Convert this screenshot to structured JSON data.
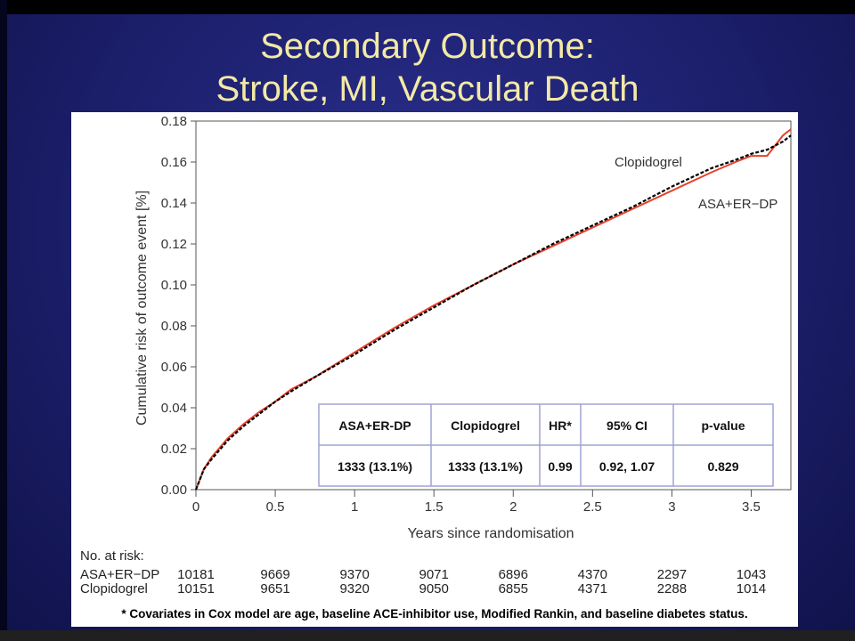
{
  "slide": {
    "title_line1": "Secondary Outcome:",
    "title_line2": "Stroke, MI, Vascular Death",
    "footnote": "* Covariates in Cox model are age, baseline ACE-inhibitor use, Modified Rankin, and baseline diabetes status."
  },
  "colors": {
    "background": "#1c1f6b",
    "title": "#f3e9a6",
    "asa_line": "#e8402a",
    "clopidogrel_line": "#000000"
  },
  "chart_data": {
    "type": "line",
    "xlabel": "Years since randomisation",
    "ylabel": "Cumulative risk of outcome event [%]",
    "xlim": [
      0,
      3.75
    ],
    "ylim": [
      0,
      0.18
    ],
    "x_ticks": [
      "0",
      "0.5",
      "1",
      "1.5",
      "2",
      "2.5",
      "3",
      "3.5"
    ],
    "y_ticks": [
      "0.00",
      "0.02",
      "0.04",
      "0.06",
      "0.08",
      "0.10",
      "0.12",
      "0.14",
      "0.16",
      "0.18"
    ],
    "grid": false,
    "series": [
      {
        "name": "ASA+ER−DP",
        "style": "solid",
        "color": "#e8402a",
        "x": [
          0,
          0.05,
          0.1,
          0.2,
          0.3,
          0.4,
          0.5,
          0.6,
          0.75,
          1.0,
          1.25,
          1.5,
          1.75,
          2.0,
          2.25,
          2.5,
          2.75,
          3.0,
          3.25,
          3.4,
          3.5,
          3.6,
          3.7,
          3.75
        ],
        "y": [
          0,
          0.01,
          0.016,
          0.025,
          0.032,
          0.038,
          0.043,
          0.049,
          0.055,
          0.067,
          0.079,
          0.09,
          0.1,
          0.11,
          0.119,
          0.128,
          0.137,
          0.146,
          0.155,
          0.16,
          0.163,
          0.163,
          0.173,
          0.176
        ]
      },
      {
        "name": "Clopidogrel",
        "style": "dashed",
        "color": "#000000",
        "x": [
          0,
          0.05,
          0.1,
          0.2,
          0.3,
          0.4,
          0.5,
          0.6,
          0.75,
          1.0,
          1.25,
          1.5,
          1.75,
          2.0,
          2.25,
          2.5,
          2.75,
          3.0,
          3.25,
          3.4,
          3.5,
          3.6,
          3.7,
          3.75
        ],
        "y": [
          0,
          0.01,
          0.015,
          0.024,
          0.031,
          0.037,
          0.043,
          0.048,
          0.055,
          0.066,
          0.078,
          0.089,
          0.1,
          0.11,
          0.12,
          0.129,
          0.138,
          0.148,
          0.157,
          0.161,
          0.164,
          0.166,
          0.17,
          0.173
        ]
      }
    ],
    "annotations": {
      "clopidogrel_label": "Clopidogrel",
      "asa_label": "ASA+ER−DP"
    },
    "results_table": {
      "headers": [
        "ASA+ER-DP",
        "Clopidogrel",
        "HR*",
        "95% CI",
        "p-value"
      ],
      "row": [
        "1333 (13.1%)",
        "1333 (13.1%)",
        "0.99",
        "0.92, 1.07",
        "0.829"
      ]
    },
    "at_risk": {
      "title": "No. at risk:",
      "rows": [
        {
          "label": "ASA+ER−DP",
          "values": [
            "10181",
            "9669",
            "9370",
            "9071",
            "6896",
            "4370",
            "2297",
            "1043"
          ]
        },
        {
          "label": "Clopidogrel",
          "values": [
            "10151",
            "9651",
            "9320",
            "9050",
            "6855",
            "4371",
            "2288",
            "1014"
          ]
        }
      ]
    }
  }
}
